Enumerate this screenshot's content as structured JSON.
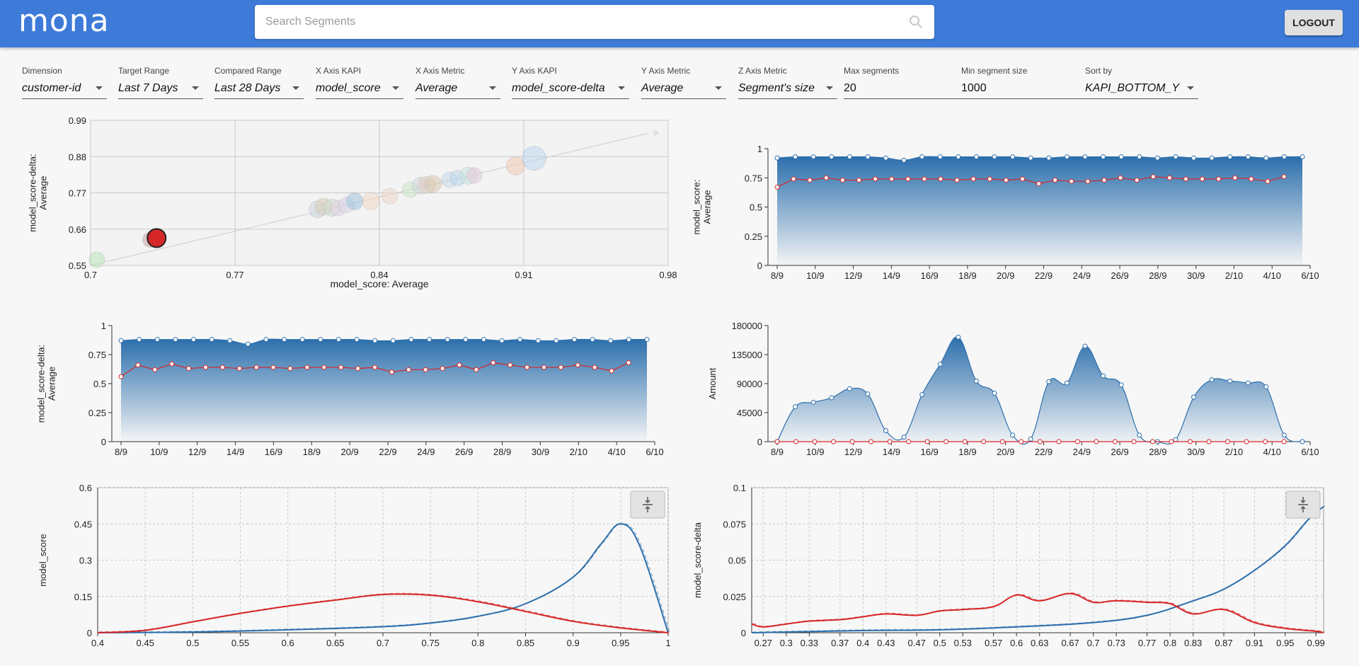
{
  "header": {
    "logo": "mona",
    "search_placeholder": "Search Segments",
    "logout_label": "LOGOUT"
  },
  "filters": [
    {
      "label": "Dimension",
      "value": "customer-id",
      "dropdown": true
    },
    {
      "label": "Target Range",
      "value": "Last 7 Days",
      "dropdown": true
    },
    {
      "label": "Compared Range",
      "value": "Last 28 Days",
      "dropdown": true
    },
    {
      "label": "X Axis KAPI",
      "value": "model_score",
      "dropdown": true
    },
    {
      "label": "X Axis Metric",
      "value": "Average",
      "dropdown": true
    },
    {
      "label": "Y Axis KAPI",
      "value": "model_score-delta",
      "dropdown": true
    },
    {
      "label": "Y Axis Metric",
      "value": "Average",
      "dropdown": true
    },
    {
      "label": "Z Axis Metric",
      "value": "Segment's size",
      "dropdown": true
    },
    {
      "label": "Max segments",
      "value": "20",
      "dropdown": false
    },
    {
      "label": "Min segment size",
      "value": "1000",
      "dropdown": false
    },
    {
      "label": "Sort by",
      "value": "KAPI_BOTTOM_Y",
      "dropdown": true
    }
  ],
  "colors": {
    "blue": "#2c6fac",
    "red": "#d62728",
    "accent": "#3e7bd9"
  },
  "chart_data": [
    {
      "type": "scatter",
      "xlabel": "model_score: Average",
      "ylabel": "model_score-delta: Average",
      "xlim": [
        0.7,
        0.98
      ],
      "ylim": [
        0.55,
        0.99
      ],
      "xticks": [
        "0.7",
        "0.77",
        "0.84",
        "0.91",
        "0.98"
      ],
      "yticks": [
        "0.55",
        "0.66",
        "0.77",
        "0.88",
        "0.99"
      ],
      "grid": true,
      "trend_line": [
        [
          0.7,
          0.55
        ],
        [
          0.97,
          0.95
        ]
      ],
      "points": [
        {
          "x": 0.703,
          "y": 0.567,
          "r": 11,
          "color": "#b9e4b9"
        },
        {
          "x": 0.729,
          "y": 0.628,
          "r": 11,
          "color": "#c9a3a3"
        },
        {
          "x": 0.732,
          "y": 0.633,
          "r": 11,
          "color": "#d62728",
          "highlight": true
        },
        {
          "x": 0.81,
          "y": 0.72,
          "r": 12,
          "color": "#cbd4df"
        },
        {
          "x": 0.813,
          "y": 0.728,
          "r": 12,
          "color": "#d9ccb5"
        },
        {
          "x": 0.817,
          "y": 0.725,
          "r": 12,
          "color": "#c7dccd"
        },
        {
          "x": 0.82,
          "y": 0.724,
          "r": 11,
          "color": "#e6cfe2"
        },
        {
          "x": 0.824,
          "y": 0.733,
          "r": 11,
          "color": "#d6d6e8"
        },
        {
          "x": 0.828,
          "y": 0.744,
          "r": 12,
          "color": "#9fc3de"
        },
        {
          "x": 0.836,
          "y": 0.745,
          "r": 12,
          "color": "#f3d9c4"
        },
        {
          "x": 0.845,
          "y": 0.76,
          "r": 11,
          "color": "#edd5c4"
        },
        {
          "x": 0.855,
          "y": 0.78,
          "r": 11,
          "color": "#c9e8c9"
        },
        {
          "x": 0.86,
          "y": 0.792,
          "r": 12,
          "color": "#cfd5df"
        },
        {
          "x": 0.863,
          "y": 0.794,
          "r": 12,
          "color": "#e0d0bc"
        },
        {
          "x": 0.866,
          "y": 0.797,
          "r": 12,
          "color": "#d7c7b0"
        },
        {
          "x": 0.874,
          "y": 0.81,
          "r": 11,
          "color": "#c5d9ec"
        },
        {
          "x": 0.878,
          "y": 0.815,
          "r": 11,
          "color": "#bcd7ec"
        },
        {
          "x": 0.883,
          "y": 0.822,
          "r": 12,
          "color": "#c7e3dc"
        },
        {
          "x": 0.886,
          "y": 0.823,
          "r": 11,
          "color": "#e3c8d8"
        },
        {
          "x": 0.906,
          "y": 0.852,
          "r": 13,
          "color": "#f0c9b0"
        },
        {
          "x": 0.915,
          "y": 0.875,
          "r": 17,
          "color": "#bdd6ec"
        },
        {
          "x": 0.974,
          "y": 0.952,
          "r": 3,
          "color": "#d8d8d8"
        }
      ]
    },
    {
      "type": "area",
      "ylabel": "model_score: Average",
      "ylim": [
        0,
        1
      ],
      "yticks": [
        "0",
        "0.25",
        "0.5",
        "0.75",
        "1"
      ],
      "xticks": [
        "8/9",
        "10/9",
        "12/9",
        "14/9",
        "16/9",
        "18/9",
        "20/9",
        "22/9",
        "24/9",
        "26/9",
        "28/9",
        "30/9",
        "2/10",
        "4/10",
        "6/10"
      ],
      "series": [
        {
          "color": "#2c6fac",
          "values": [
            0.92,
            0.93,
            0.93,
            0.93,
            0.93,
            0.93,
            0.92,
            0.9,
            0.93,
            0.93,
            0.93,
            0.93,
            0.93,
            0.93,
            0.92,
            0.92,
            0.93,
            0.93,
            0.93,
            0.93,
            0.93,
            0.92,
            0.93,
            0.92,
            0.92,
            0.93,
            0.93,
            0.92,
            0.93,
            0.93
          ]
        },
        {
          "color": "#d62728",
          "values": [
            0.67,
            0.74,
            0.73,
            0.75,
            0.73,
            0.73,
            0.74,
            0.74,
            0.74,
            0.74,
            0.74,
            0.73,
            0.74,
            0.74,
            0.73,
            0.74,
            0.7,
            0.73,
            0.72,
            0.72,
            0.73,
            0.75,
            0.73,
            0.76,
            0.75,
            0.74,
            0.74,
            0.74,
            0.75,
            0.74,
            0.72,
            0.76
          ]
        }
      ]
    },
    {
      "type": "area",
      "ylabel": "model_score-delta: Average",
      "ylim": [
        0,
        1
      ],
      "yticks": [
        "0",
        "0.25",
        "0.5",
        "0.75",
        "1"
      ],
      "xticks": [
        "8/9",
        "10/9",
        "12/9",
        "14/9",
        "16/9",
        "18/9",
        "20/9",
        "22/9",
        "24/9",
        "26/9",
        "28/9",
        "30/9",
        "2/10",
        "4/10",
        "6/10"
      ],
      "series": [
        {
          "color": "#2c6fac",
          "values": [
            0.87,
            0.88,
            0.88,
            0.88,
            0.88,
            0.88,
            0.87,
            0.84,
            0.88,
            0.88,
            0.88,
            0.88,
            0.88,
            0.88,
            0.87,
            0.87,
            0.88,
            0.88,
            0.88,
            0.88,
            0.88,
            0.87,
            0.88,
            0.87,
            0.87,
            0.88,
            0.88,
            0.87,
            0.88,
            0.88
          ]
        },
        {
          "color": "#d62728",
          "values": [
            0.56,
            0.66,
            0.62,
            0.67,
            0.63,
            0.64,
            0.64,
            0.63,
            0.64,
            0.64,
            0.63,
            0.64,
            0.64,
            0.64,
            0.63,
            0.64,
            0.6,
            0.62,
            0.62,
            0.63,
            0.66,
            0.62,
            0.68,
            0.66,
            0.64,
            0.64,
            0.64,
            0.66,
            0.64,
            0.61,
            0.68
          ]
        }
      ]
    },
    {
      "type": "area",
      "ylabel": "Amount",
      "ylim": [
        0,
        180000
      ],
      "yticks": [
        "0",
        "45000",
        "90000",
        "135000",
        "180000"
      ],
      "xticks": [
        "8/9",
        "10/9",
        "12/9",
        "14/9",
        "16/9",
        "18/9",
        "20/9",
        "22/9",
        "24/9",
        "26/9",
        "28/9",
        "30/9",
        "2/10",
        "4/10",
        "6/10"
      ],
      "series": [
        {
          "color": "#2c6fac",
          "values": [
            0,
            54000,
            61000,
            68000,
            82000,
            74000,
            17000,
            7000,
            73000,
            120000,
            162000,
            94000,
            75000,
            10000,
            4000,
            93000,
            91000,
            148000,
            102000,
            88000,
            10000,
            0,
            3000,
            69000,
            96000,
            94000,
            91000,
            85000,
            10000,
            0
          ]
        },
        {
          "color": "#d62728",
          "values": [
            0,
            0,
            0,
            0,
            0,
            0,
            0,
            0,
            0,
            0,
            0,
            0,
            0,
            0,
            0,
            0,
            0,
            0,
            0,
            0,
            0,
            0,
            0,
            0,
            0,
            0,
            0,
            0
          ]
        }
      ]
    },
    {
      "type": "line",
      "ylabel": "model_score",
      "xlim": [
        0.4,
        1
      ],
      "ylim": [
        0,
        0.6
      ],
      "xticks": [
        "0.4",
        "0.45",
        "0.5",
        "0.55",
        "0.6",
        "0.65",
        "0.7",
        "0.75",
        "0.8",
        "0.85",
        "0.9",
        "0.95",
        "1"
      ],
      "yticks": [
        "0",
        "0.15",
        "0.3",
        "0.45",
        "0.6"
      ],
      "grid": true,
      "series": [
        {
          "color": "#2c6fac",
          "x": [
            0.4,
            0.5,
            0.6,
            0.7,
            0.75,
            0.8,
            0.85,
            0.9,
            0.93,
            0.95,
            0.97,
            1.0
          ],
          "y": [
            0.0,
            0.003,
            0.012,
            0.025,
            0.04,
            0.068,
            0.12,
            0.23,
            0.37,
            0.45,
            0.36,
            0.0
          ]
        },
        {
          "color": "#d62728",
          "x": [
            0.4,
            0.45,
            0.5,
            0.55,
            0.6,
            0.65,
            0.7,
            0.75,
            0.8,
            0.85,
            0.9,
            0.95,
            1.0
          ],
          "y": [
            0.0,
            0.01,
            0.045,
            0.08,
            0.11,
            0.135,
            0.158,
            0.155,
            0.128,
            0.088,
            0.047,
            0.02,
            0.0
          ]
        }
      ]
    },
    {
      "type": "line",
      "ylabel": "model_score-delta",
      "xlim": [
        0.255,
        1
      ],
      "ylim": [
        0,
        0.1
      ],
      "xticks": [
        "0.27",
        "0.3",
        "0.33",
        "0.37",
        "0.4",
        "0.43",
        "0.47",
        "0.5",
        "0.53",
        "0.57",
        "0.6",
        "0.63",
        "0.67",
        "0.7",
        "0.73",
        "0.77",
        "0.8",
        "0.83",
        "0.87",
        "0.91",
        "0.95",
        "0.99"
      ],
      "yticks": [
        "0",
        "0.025",
        "0.05",
        "0.075",
        "0.1"
      ],
      "grid": true,
      "series": [
        {
          "color": "#2c6fac",
          "x": [
            0.255,
            0.4,
            0.5,
            0.6,
            0.7,
            0.77,
            0.83,
            0.87,
            0.91,
            0.95,
            0.98,
            1.0
          ],
          "y": [
            0.0,
            0.0015,
            0.002,
            0.004,
            0.007,
            0.012,
            0.022,
            0.03,
            0.043,
            0.06,
            0.078,
            0.087
          ]
        },
        {
          "color": "#d62728",
          "x": [
            0.255,
            0.27,
            0.3,
            0.33,
            0.37,
            0.4,
            0.43,
            0.47,
            0.5,
            0.53,
            0.57,
            0.6,
            0.63,
            0.67,
            0.7,
            0.73,
            0.77,
            0.8,
            0.83,
            0.87,
            0.91,
            0.95,
            0.99,
            1.0
          ],
          "y": [
            0.006,
            0.004,
            0.006,
            0.008,
            0.009,
            0.011,
            0.013,
            0.012,
            0.015,
            0.016,
            0.018,
            0.026,
            0.022,
            0.027,
            0.021,
            0.022,
            0.021,
            0.02,
            0.013,
            0.016,
            0.007,
            0.003,
            0.001,
            0.0
          ]
        }
      ]
    }
  ]
}
